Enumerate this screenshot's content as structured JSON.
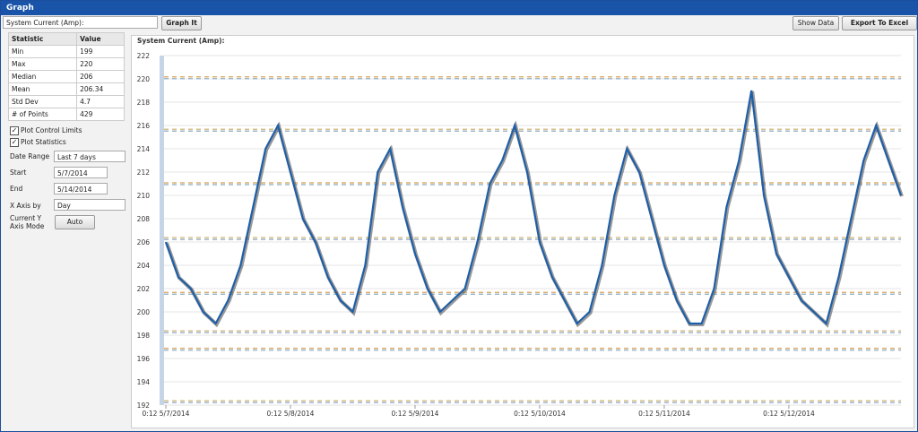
{
  "window": {
    "title": "Graph"
  },
  "toolbar": {
    "metric": "System Current (Amp):",
    "graph_button": "Graph It",
    "show_data": "Show Data",
    "export": "Export To Excel"
  },
  "stats": {
    "header": [
      "Statistic",
      "Value"
    ],
    "rows": [
      [
        "Min",
        "199"
      ],
      [
        "Max",
        "220"
      ],
      [
        "Median",
        "206"
      ],
      [
        "Mean",
        "206.34"
      ],
      [
        "Std Dev",
        "4.7"
      ],
      [
        "# of Points",
        "429"
      ]
    ]
  },
  "options": {
    "plot_control_limits": "Plot Control Limits",
    "plot_statistics": "Plot Statistics",
    "date_range_label": "Date Range",
    "date_range": "Last 7 days",
    "start_label": "Start",
    "start": "5/7/2014",
    "end_label": "End",
    "end": "5/14/2014",
    "x_axis_label": "X Axis by",
    "x_axis": "Day",
    "y_mode_label": "Current Y Axis Mode",
    "y_mode": "Auto"
  },
  "chart_data": {
    "type": "line",
    "title": "System Current (Amp):",
    "color": "#1f5fa8",
    "xlim": [
      0,
      5.9
    ],
    "xticks": [
      {
        "value": 0,
        "label": "0:12 5/7/2014"
      },
      {
        "value": 1,
        "label": "0:12 5/8/2014"
      },
      {
        "value": 2,
        "label": "0:12 5/9/2014"
      },
      {
        "value": 3,
        "label": "0:12 5/10/2014"
      },
      {
        "value": 4,
        "label": "0:12 5/11/2014"
      },
      {
        "value": 5,
        "label": "0:12 5/12/2014"
      }
    ],
    "ylim": [
      192,
      222
    ],
    "yticks": [
      192,
      194,
      196,
      198,
      200,
      202,
      204,
      206,
      208,
      210,
      212,
      214,
      216,
      218,
      220,
      222
    ],
    "grid": true,
    "control_limits": [
      220.1,
      215.6,
      211,
      206.3,
      201.6,
      198.3,
      196.8,
      192.3
    ],
    "x": [
      0,
      0.1,
      0.2,
      0.3,
      0.4,
      0.5,
      0.6,
      0.7,
      0.8,
      0.9,
      1,
      1.1,
      1.2,
      1.3,
      1.4,
      1.5,
      1.6,
      1.7,
      1.8,
      1.9,
      2,
      2.1,
      2.2,
      2.3,
      2.4,
      2.5,
      2.6,
      2.7,
      2.8,
      2.9,
      3,
      3.1,
      3.2,
      3.3,
      3.4,
      3.5,
      3.6,
      3.7,
      3.8,
      3.9,
      4,
      4.1,
      4.2,
      4.3,
      4.4,
      4.5,
      4.6,
      4.7,
      4.8,
      4.9,
      5,
      5.1,
      5.2,
      5.3,
      5.4,
      5.5,
      5.6,
      5.7,
      5.8,
      5.9
    ],
    "values": [
      206,
      203,
      202,
      200,
      199,
      201,
      204,
      209,
      214,
      216,
      212,
      208,
      206,
      203,
      201,
      200,
      204,
      212,
      214,
      209,
      205,
      202,
      200,
      201,
      202,
      206,
      211,
      213,
      216,
      212,
      206,
      203,
      201,
      199,
      200,
      204,
      210,
      214,
      212,
      208,
      204,
      201,
      199,
      199,
      202,
      209,
      213,
      219,
      210,
      205,
      203,
      201,
      200,
      199,
      203,
      208,
      213,
      216,
      213,
      210
    ]
  }
}
